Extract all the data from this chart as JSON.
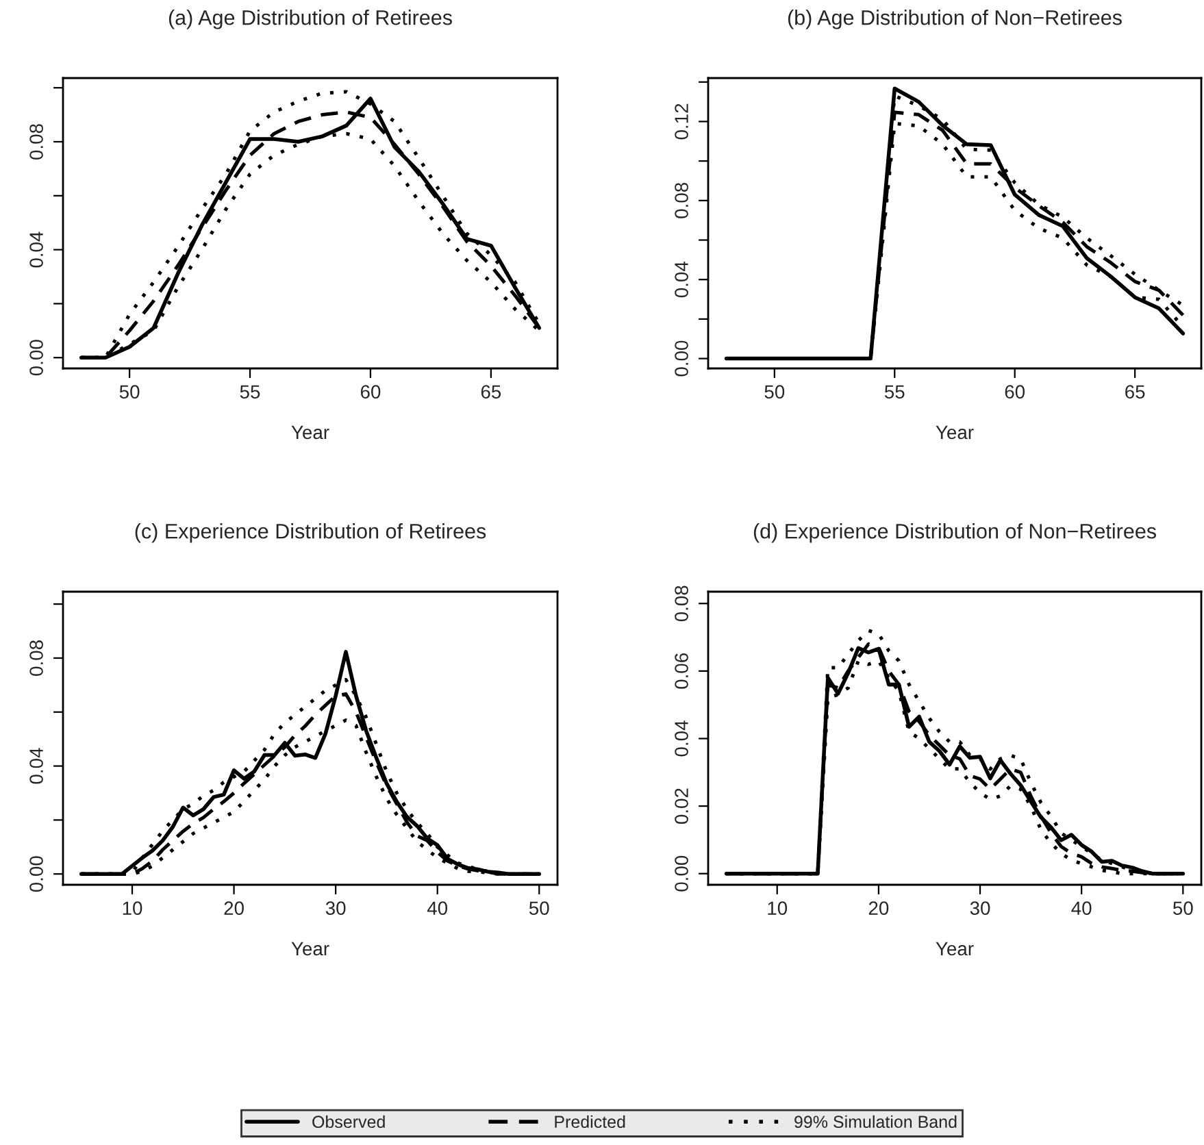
{
  "chart_data": [
    {
      "type": "line",
      "title": "(a) Age Distribution of Retirees",
      "xlabel": "Year",
      "x": [
        48,
        49,
        50,
        51,
        52,
        53,
        54,
        55,
        56,
        57,
        58,
        59,
        60,
        61,
        62,
        63,
        64,
        65,
        66,
        67
      ],
      "xlim": [
        47.24,
        67.76
      ],
      "xticks": [
        50,
        55,
        60,
        65
      ],
      "ylim": [
        -0.004,
        0.1036
      ],
      "yticks": [
        {
          "value": 0,
          "label": "0.00"
        },
        {
          "value": 0.02,
          "label": null
        },
        0.04,
        {
          "value": 0.06,
          "label": null
        },
        0.08,
        {
          "value": 0.1,
          "label": null
        }
      ],
      "legend": "bottom",
      "grid": false,
      "series": [
        {
          "name": "Observed",
          "color": "#000000",
          "line_style": "solid",
          "values": [
            0,
            0,
            0.004,
            0.011,
            0.031,
            0.049,
            0.065,
            0.081,
            0.081,
            0.08,
            0.082,
            0.086,
            0.096,
            0.078,
            0.069,
            0.057,
            0.044,
            0.0415,
            0.026,
            0.011
          ]
        },
        {
          "name": "Predicted",
          "color": "#000000",
          "line_style": "dashed",
          "values": [
            0,
            0,
            0.01,
            0.021,
            0.034,
            0.048,
            0.062,
            0.075,
            0.083,
            0.0875,
            0.09,
            0.091,
            0.089,
            0.079,
            0.068,
            0.056,
            0.043,
            0.034,
            0.023,
            0.011
          ]
        },
        {
          "name": "99% Simulation Band",
          "color": "#000000",
          "line_style": "dotted",
          "values": [
            0,
            0,
            0.016,
            0.028,
            0.041,
            0.055,
            0.068,
            0.084,
            0.091,
            0.095,
            0.098,
            0.0985,
            0.094,
            0.0875,
            0.074,
            0.06,
            0.046,
            0.038,
            0.028,
            0.0126
          ]
        },
        {
          "color": "#000000",
          "line_style": "dotted",
          "values": [
            0,
            0,
            0.005,
            0.01,
            0.026,
            0.04,
            0.055,
            0.068,
            0.075,
            0.079,
            0.082,
            0.083,
            0.081,
            0.071,
            0.058,
            0.046,
            0.036,
            0.028,
            0.018,
            0.01
          ]
        }
      ]
    },
    {
      "type": "line",
      "title": "(b) Age Distribution of Non−Retirees",
      "xlabel": "Year",
      "x": [
        48,
        49,
        50,
        51,
        52,
        53,
        54,
        55,
        56,
        57,
        58,
        59,
        60,
        61,
        62,
        63,
        64,
        65,
        66,
        67
      ],
      "xlim": [
        47.24,
        67.76
      ],
      "xticks": [
        50,
        55,
        60,
        65
      ],
      "ylim": [
        -0.005,
        0.142
      ],
      "yticks": [
        {
          "value": 0,
          "label": "0.00"
        },
        {
          "value": 0.02,
          "label": null
        },
        0.04,
        {
          "value": 0.06,
          "label": null
        },
        0.08,
        {
          "value": 0.1,
          "label": null
        },
        0.12,
        {
          "value": 0.14,
          "label": null
        }
      ],
      "legend": "bottom",
      "grid": false,
      "series": [
        {
          "name": "Observed",
          "color": "#000000",
          "line_style": "solid",
          "values": [
            0,
            0,
            0,
            0,
            0,
            0,
            0,
            0.1367,
            0.13,
            0.118,
            0.1085,
            0.108,
            0.083,
            0.0727,
            0.067,
            0.0508,
            0.0415,
            0.031,
            0.0254,
            0.0127
          ]
        },
        {
          "name": "Predicted",
          "color": "#000000",
          "line_style": "dashed",
          "values": [
            0,
            0,
            0,
            0,
            0,
            0,
            0,
            0.1247,
            0.1235,
            0.1155,
            0.0986,
            0.0986,
            0.0866,
            0.0774,
            0.069,
            0.0566,
            0.0485,
            0.039,
            0.0346,
            0.022
          ]
        },
        {
          "name": "99% Simulation Band",
          "color": "#000000",
          "line_style": "dotted",
          "values": [
            0,
            0,
            0,
            0,
            0,
            0,
            0,
            0.133,
            0.128,
            0.121,
            0.106,
            0.1055,
            0.089,
            0.078,
            0.0716,
            0.061,
            0.052,
            0.0427,
            0.0346,
            0.027
          ]
        },
        {
          "color": "#000000",
          "line_style": "dotted",
          "values": [
            0,
            0,
            0,
            0,
            0,
            0,
            0,
            0.119,
            0.1178,
            0.1085,
            0.092,
            0.092,
            0.075,
            0.066,
            0.061,
            0.0473,
            0.0415,
            0.031,
            0.03,
            0.016
          ]
        }
      ]
    },
    {
      "type": "line",
      "title": "(c) Experience Distribution of Retirees",
      "xlabel": "Year",
      "x": [
        5,
        6,
        7,
        8,
        9,
        10,
        11,
        12,
        13,
        14,
        15,
        16,
        17,
        18,
        19,
        20,
        21,
        22,
        23,
        24,
        25,
        26,
        27,
        28,
        29,
        30,
        31,
        32,
        33,
        34,
        35,
        36,
        37,
        38,
        39,
        40,
        41,
        42,
        43,
        44,
        45,
        46,
        47,
        48,
        49,
        50
      ],
      "xlim": [
        3.2,
        51.8
      ],
      "xticks": [
        10,
        20,
        30,
        40,
        50
      ],
      "ylim": [
        -0.004,
        0.1046
      ],
      "yticks": [
        {
          "value": 0,
          "label": "0.00"
        },
        {
          "value": 0.02,
          "label": null
        },
        0.04,
        {
          "value": 0.06,
          "label": null
        },
        0.08,
        {
          "value": 0.1,
          "label": null
        }
      ],
      "legend": "bottom",
      "grid": false,
      "series": [
        {
          "name": "Observed",
          "color": "#000000",
          "line_style": "solid",
          "values": [
            0,
            0,
            0,
            0,
            0,
            0.003,
            0.006,
            0.0087,
            0.0124,
            0.0175,
            0.0246,
            0.0217,
            0.024,
            0.0285,
            0.0294,
            0.0384,
            0.0353,
            0.038,
            0.0441,
            0.0441,
            0.0486,
            0.0438,
            0.0443,
            0.043,
            0.052,
            0.066,
            0.0823,
            0.066,
            0.053,
            0.043,
            0.0336,
            0.0268,
            0.0212,
            0.0178,
            0.0132,
            0.0107,
            0.0056,
            0.0036,
            0.0022,
            0.0017,
            0.0008,
            0.0005,
            0,
            0,
            0,
            0
          ]
        },
        {
          "name": "Predicted",
          "color": "#000000",
          "line_style": "dashed",
          "values": [
            0,
            0,
            0,
            0,
            0,
            0,
            0.002,
            0.0048,
            0.009,
            0.0124,
            0.0158,
            0.0187,
            0.0209,
            0.024,
            0.0268,
            0.03,
            0.0336,
            0.037,
            0.0404,
            0.0438,
            0.047,
            0.0514,
            0.0548,
            0.059,
            0.0625,
            0.066,
            0.0667,
            0.06,
            0.0506,
            0.0413,
            0.0328,
            0.026,
            0.0192,
            0.0141,
            0.0124,
            0.0081,
            0.0048,
            0.0031,
            0.0019,
            0.0012,
            0.0007,
            0,
            0,
            0,
            0,
            0
          ]
        },
        {
          "name": "99% Simulation Band",
          "color": "#000000",
          "line_style": "dotted",
          "values": [
            0,
            0,
            0,
            0,
            0,
            0.0005,
            0.006,
            0.011,
            0.016,
            0.02,
            0.024,
            0.026,
            0.029,
            0.031,
            0.034,
            0.036,
            0.038,
            0.042,
            0.046,
            0.052,
            0.056,
            0.059,
            0.062,
            0.065,
            0.068,
            0.07,
            0.072,
            0.066,
            0.058,
            0.048,
            0.038,
            0.03,
            0.024,
            0.019,
            0.015,
            0.01,
            0.007,
            0.004,
            0.003,
            0.0015,
            0.001,
            0.0004,
            0,
            0,
            0,
            0
          ]
        },
        {
          "color": "#000000",
          "line_style": "dotted",
          "values": [
            0,
            0,
            0,
            0,
            0,
            0,
            0.001,
            0.003,
            0.006,
            0.009,
            0.012,
            0.015,
            0.017,
            0.019,
            0.021,
            0.023,
            0.027,
            0.031,
            0.035,
            0.04,
            0.044,
            0.047,
            0.049,
            0.051,
            0.053,
            0.055,
            0.057,
            0.055,
            0.045,
            0.036,
            0.028,
            0.022,
            0.017,
            0.012,
            0.009,
            0.006,
            0.004,
            0.002,
            0.001,
            0.0008,
            0.0004,
            0,
            0,
            0,
            0,
            0
          ]
        }
      ]
    },
    {
      "type": "line",
      "title": "(d) Experience Distribution of Non−Retirees",
      "xlabel": "Year",
      "x": [
        5,
        6,
        7,
        8,
        9,
        10,
        11,
        12,
        13,
        14,
        15,
        16,
        17,
        18,
        19,
        20,
        21,
        22,
        23,
        24,
        25,
        26,
        27,
        28,
        29,
        30,
        31,
        32,
        33,
        34,
        35,
        36,
        37,
        38,
        39,
        40,
        41,
        42,
        43,
        44,
        45,
        46,
        47,
        48,
        49,
        50
      ],
      "xlim": [
        3.2,
        51.8
      ],
      "xticks": [
        10,
        20,
        30,
        40,
        50
      ],
      "ylim": [
        -0.0033,
        0.0835
      ],
      "yticks": [
        {
          "value": 0,
          "label": "0.00"
        },
        0.02,
        0.04,
        0.06,
        0.08
      ],
      "legend": "bottom",
      "grid": false,
      "series": [
        {
          "name": "Observed",
          "color": "#000000",
          "line_style": "solid",
          "values": [
            0,
            0,
            0,
            0,
            0,
            0,
            0,
            0,
            0,
            0,
            0.058,
            0.0533,
            0.0594,
            0.0668,
            0.0655,
            0.0666,
            0.056,
            0.056,
            0.0435,
            0.0465,
            0.039,
            0.0363,
            0.0323,
            0.0377,
            0.0343,
            0.0346,
            0.0282,
            0.0336,
            0.0296,
            0.0262,
            0.0214,
            0.0167,
            0.0137,
            0.0099,
            0.0115,
            0.0085,
            0.0065,
            0.0035,
            0.0038,
            0.0024,
            0.0018,
            0.0007,
            0,
            0,
            0,
            0
          ]
        },
        {
          "name": "Predicted",
          "color": "#000000",
          "line_style": "dashed",
          "values": [
            0,
            0,
            0,
            0,
            0,
            0,
            0,
            0,
            0,
            0,
            0.056,
            0.055,
            0.06,
            0.064,
            0.068,
            0.067,
            0.06,
            0.056,
            0.048,
            0.045,
            0.041,
            0.038,
            0.035,
            0.034,
            0.029,
            0.028,
            0.025,
            0.028,
            0.031,
            0.03,
            0.023,
            0.017,
            0.012,
            0.008,
            0.006,
            0.005,
            0.003,
            0.002,
            0.0015,
            0.001,
            0.0007,
            0.0003,
            0,
            0,
            0,
            0
          ]
        },
        {
          "name": "99% Simulation Band",
          "color": "#000000",
          "line_style": "dotted",
          "values": [
            0,
            0,
            0,
            0,
            0,
            0,
            0,
            0,
            0,
            0,
            0.061,
            0.061,
            0.065,
            0.069,
            0.072,
            0.071,
            0.066,
            0.063,
            0.056,
            0.051,
            0.046,
            0.042,
            0.039,
            0.039,
            0.035,
            0.034,
            0.031,
            0.034,
            0.035,
            0.034,
            0.027,
            0.021,
            0.017,
            0.012,
            0.01,
            0.008,
            0.006,
            0.004,
            0.003,
            0.002,
            0.001,
            0.0005,
            0,
            0,
            0,
            0
          ]
        },
        {
          "color": "#000000",
          "line_style": "dotted",
          "values": [
            0,
            0,
            0,
            0,
            0,
            0,
            0,
            0,
            0,
            0,
            0.052,
            0.053,
            0.055,
            0.063,
            0.062,
            0.063,
            0.058,
            0.054,
            0.042,
            0.04,
            0.037,
            0.034,
            0.031,
            0.031,
            0.027,
            0.024,
            0.022,
            0.023,
            0.026,
            0.025,
            0.02,
            0.013,
            0.009,
            0.006,
            0.004,
            0.003,
            0.002,
            0.001,
            0.0005,
            0,
            0,
            0,
            0,
            0,
            0,
            0
          ]
        }
      ]
    }
  ]
}
